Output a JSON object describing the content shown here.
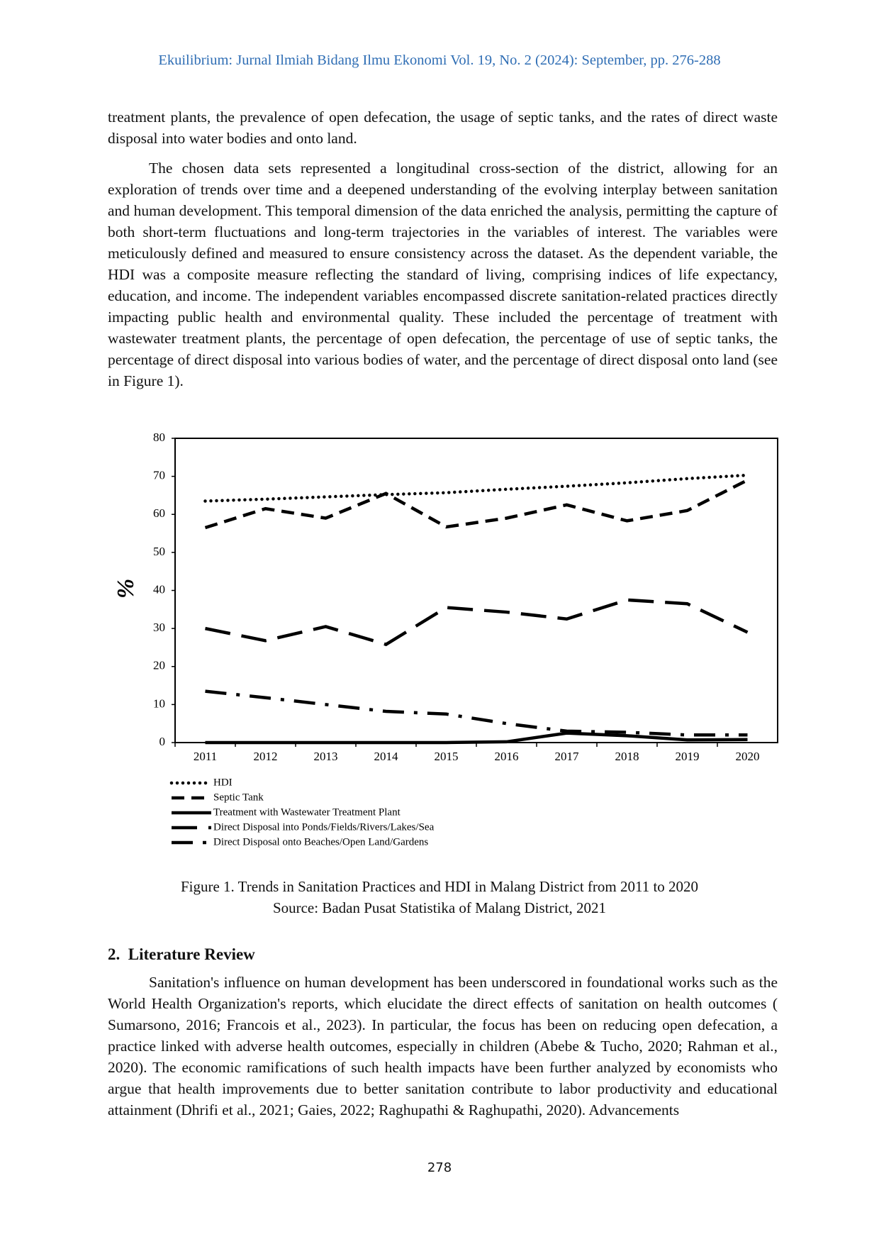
{
  "header": "Ekuilibrium: Jurnal Ilmiah Bidang Ilmu Ekonomi Vol. 19, No. 2 (2024): September, pp. 276-288",
  "paragraphs": [
    "treatment plants, the prevalence of open defecation, the usage of septic tanks, and the rates of direct waste disposal into water bodies and onto land.",
    "The chosen data sets represented a longitudinal cross-section of the district, allowing for an exploration of trends over time and a deepened understanding of the evolving interplay between sanitation and human development. This temporal dimension of the data enriched the analysis, permitting the capture of both short-term fluctuations and long-term trajectories in the variables of interest. The variables were meticulously defined and measured to ensure consistency across the dataset. As the dependent variable, the HDI was a composite measure reflecting the standard of living, comprising indices of life expectancy, education, and income. The independent variables encompassed discrete sanitation-related practices directly impacting public health and environmental quality. These included the percentage of treatment with wastewater treatment plants, the percentage of open defecation, the percentage of use of septic tanks, the percentage of direct disposal into various bodies of water, and the percentage of direct disposal onto land (see in Figure 1)."
  ],
  "chart_data": {
    "type": "line",
    "y_label": "%",
    "categories": [
      "2011",
      "2012",
      "2013",
      "2014",
      "2015",
      "2016",
      "2017",
      "2018",
      "2019",
      "2020"
    ],
    "ylim": [
      0,
      80
    ],
    "yticks": [
      0,
      10,
      20,
      30,
      40,
      50,
      60,
      70,
      80
    ],
    "series": [
      {
        "name": "HDI",
        "color": "#000000",
        "dash": "dotted",
        "values": [
          63.5,
          64.0,
          64.6,
          65.2,
          65.7,
          66.6,
          67.4,
          68.3,
          69.4,
          70.3
        ]
      },
      {
        "name": "Septic Tank",
        "color": "#000000",
        "dash": "dashed",
        "values": [
          56.5,
          61.5,
          59.0,
          65.5,
          56.7,
          59.0,
          62.5,
          58.3,
          61.0,
          69.0
        ]
      },
      {
        "name": "Treatment with Wastewater Treatment Plant",
        "color": "#000000",
        "dash": "solid",
        "values": [
          0,
          0,
          0,
          0,
          0,
          0.2,
          2.5,
          1.8,
          0.7,
          0.8
        ]
      },
      {
        "name": "Direct Disposal into Ponds/Fields/Rivers/Lakes/Sea",
        "color": "#000000",
        "dash": "long-dash",
        "values": [
          30.0,
          26.8,
          30.5,
          25.8,
          35.5,
          34.3,
          32.5,
          37.5,
          36.5,
          29.0
        ]
      },
      {
        "name": "Direct Disposal onto Beaches/Open Land/Gardens",
        "color": "#000000",
        "dash": "dash-dot",
        "values": [
          13.5,
          11.8,
          10.0,
          8.2,
          7.5,
          5.0,
          3.0,
          2.7,
          2.0,
          2.0
        ]
      }
    ]
  },
  "figure": {
    "caption": "Figure 1. Trends in Sanitation Practices and HDI in Malang District from 2011 to 2020",
    "source": "Source: Badan Pusat Statistika of Malang District, 2021"
  },
  "section": {
    "heading": "2.  Literature Review",
    "paragraph": "Sanitation's influence on human development has been underscored in foundational works such as the World Health Organization's reports, which elucidate the direct effects of sanitation on health outcomes ( Sumarsono, 2016; Francois et al., 2023). In particular, the focus has been on reducing open defecation, a practice linked with adverse health outcomes, especially in children (Abebe & Tucho, 2020; Rahman et al., 2020). The economic ramifications of such health impacts have been further analyzed by economists who argue that health improvements due to better sanitation contribute to labor productivity and educational attainment (Dhrifi et al., 2021; Gaies, 2022; Raghupathi & Raghupathi, 2020). Advancements"
  },
  "page_number": "278"
}
